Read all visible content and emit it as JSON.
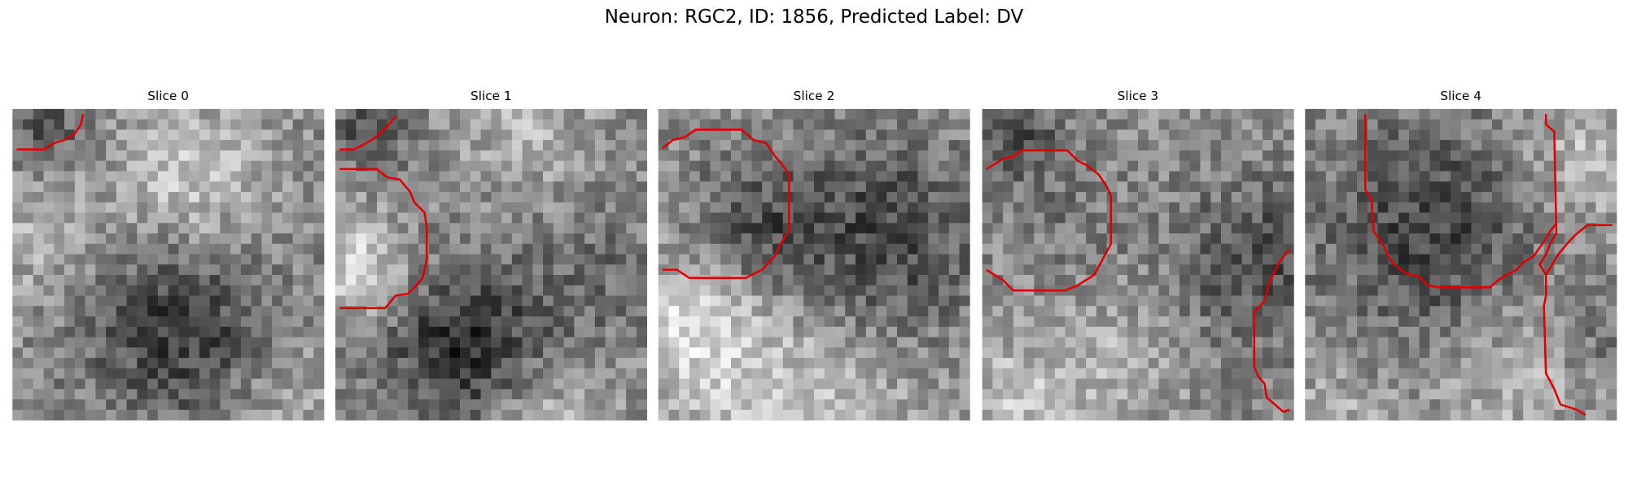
{
  "title": "Neuron: RGC2, ID: 1856, Predicted Label: DV",
  "panels": [
    {
      "title": "Slice 0"
    },
    {
      "title": "Slice 1"
    },
    {
      "title": "Slice 2"
    },
    {
      "title": "Slice 3"
    },
    {
      "title": "Slice 4"
    }
  ]
}
